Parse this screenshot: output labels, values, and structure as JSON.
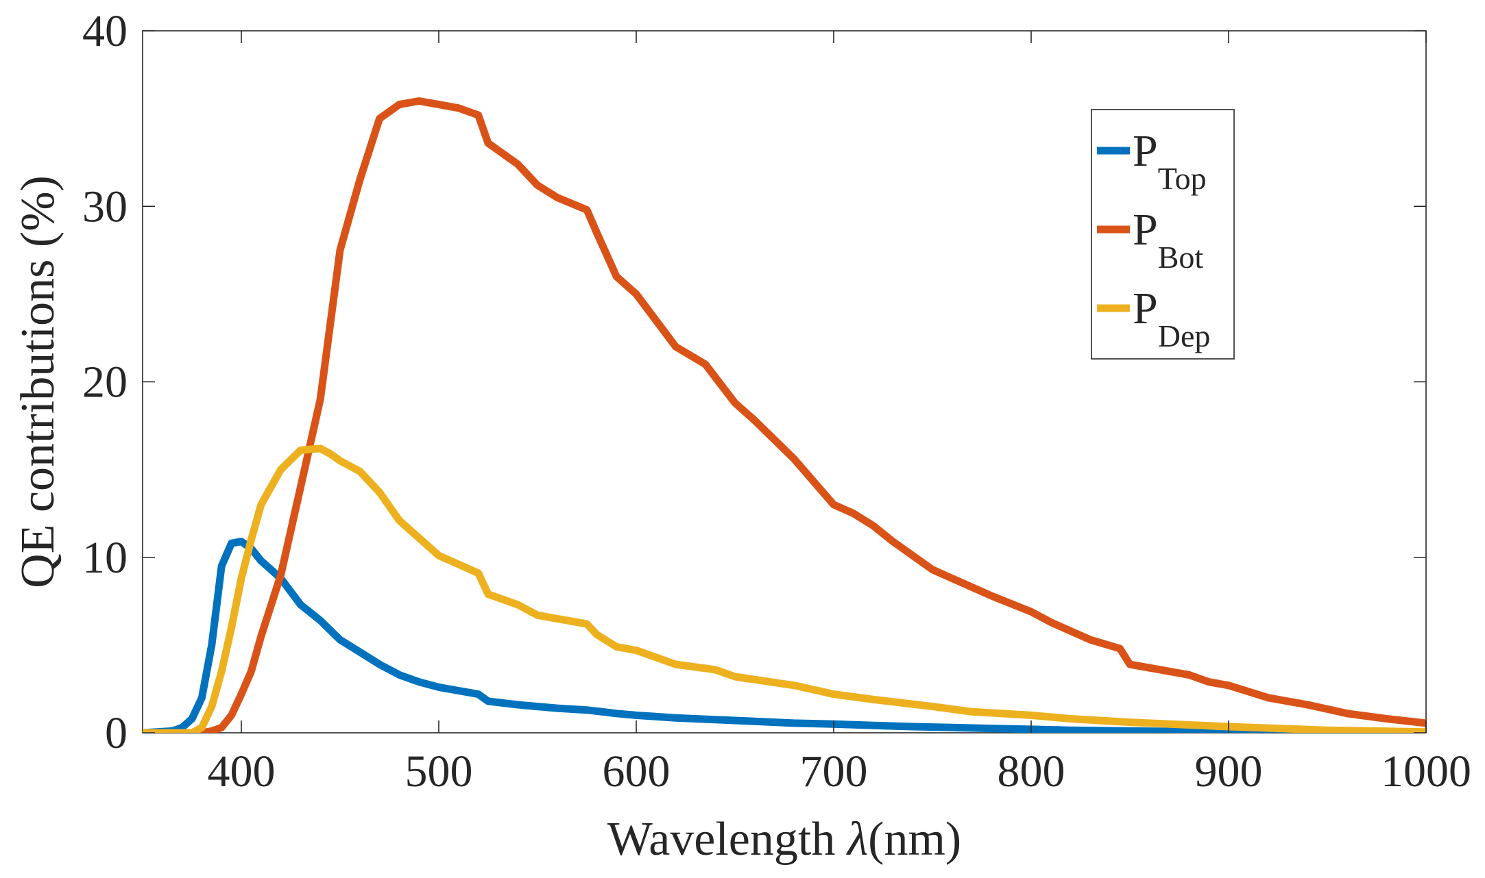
{
  "chart_data": {
    "type": "line",
    "title": "",
    "xlabel_prefix": "Wavelength ",
    "xlabel_symbol": "λ",
    "xlabel_suffix": "(nm)",
    "ylabel": "QE contributions (%)",
    "xlim": [
      350,
      1000
    ],
    "ylim": [
      0,
      40
    ],
    "xticks": [
      400,
      500,
      600,
      700,
      800,
      900,
      1000
    ],
    "yticks": [
      0,
      10,
      20,
      30,
      40
    ],
    "grid": false,
    "legend_position": "top-right",
    "series": [
      {
        "name_main": "P",
        "name_sub": "Top",
        "color": "#0072BD",
        "x": [
          350,
          365,
          370,
          375,
          380,
          385,
          390,
          395,
          400,
          405,
          410,
          420,
          430,
          440,
          450,
          460,
          470,
          480,
          490,
          500,
          510,
          520,
          525,
          540,
          550,
          560,
          575,
          590,
          600,
          620,
          640,
          660,
          680,
          700,
          720,
          740,
          760,
          780,
          800,
          820,
          850,
          880,
          900,
          950,
          1000
        ],
        "y": [
          0,
          0.1,
          0.3,
          0.8,
          2.0,
          5.0,
          9.5,
          10.8,
          10.9,
          10.5,
          9.8,
          8.8,
          7.3,
          6.4,
          5.3,
          4.6,
          3.9,
          3.3,
          2.9,
          2.6,
          2.4,
          2.2,
          1.8,
          1.6,
          1.5,
          1.4,
          1.3,
          1.1,
          1.0,
          0.85,
          0.75,
          0.65,
          0.55,
          0.5,
          0.42,
          0.35,
          0.3,
          0.25,
          0.2,
          0.15,
          0.1,
          0.07,
          0.05,
          0.02,
          0.01
        ]
      },
      {
        "name_main": "P",
        "name_sub": "Bot",
        "color": "#D95319",
        "x": [
          350,
          380,
          385,
          390,
          395,
          400,
          405,
          410,
          420,
          430,
          440,
          450,
          460,
          470,
          480,
          490,
          500,
          510,
          520,
          525,
          540,
          550,
          560,
          575,
          580,
          590,
          600,
          610,
          620,
          635,
          650,
          660,
          680,
          700,
          710,
          720,
          730,
          750,
          770,
          780,
          800,
          810,
          830,
          845,
          850,
          860,
          880,
          890,
          900,
          920,
          940,
          960,
          980,
          1000
        ],
        "y": [
          0,
          0,
          0.1,
          0.3,
          1.0,
          2.2,
          3.5,
          5.5,
          9.0,
          14.0,
          19.0,
          27.5,
          31.5,
          35.0,
          35.8,
          36.0,
          35.8,
          35.6,
          35.2,
          33.6,
          32.4,
          31.2,
          30.5,
          29.8,
          28.5,
          26.0,
          25.0,
          23.5,
          22.0,
          21.0,
          18.8,
          17.8,
          15.6,
          13.0,
          12.5,
          11.8,
          10.9,
          9.3,
          8.3,
          7.8,
          6.9,
          6.3,
          5.3,
          4.8,
          3.9,
          3.7,
          3.3,
          2.9,
          2.7,
          2.0,
          1.6,
          1.1,
          0.8,
          0.55
        ]
      },
      {
        "name_main": "P",
        "name_sub": "Dep",
        "color": "#EDB120",
        "x": [
          350,
          375,
          380,
          385,
          390,
          395,
          400,
          405,
          410,
          420,
          430,
          440,
          445,
          450,
          460,
          470,
          480,
          490,
          500,
          510,
          520,
          525,
          540,
          550,
          560,
          575,
          580,
          590,
          600,
          620,
          640,
          650,
          680,
          700,
          720,
          750,
          770,
          800,
          820,
          850,
          880,
          900,
          950,
          1000
        ],
        "y": [
          0,
          0,
          0.3,
          1.5,
          3.5,
          6.0,
          8.8,
          11.0,
          13.0,
          15.0,
          16.1,
          16.2,
          15.9,
          15.5,
          14.9,
          13.7,
          12.1,
          11.1,
          10.1,
          9.6,
          9.1,
          7.9,
          7.3,
          6.7,
          6.5,
          6.2,
          5.6,
          4.9,
          4.7,
          3.9,
          3.6,
          3.2,
          2.7,
          2.2,
          1.9,
          1.5,
          1.2,
          1.0,
          0.8,
          0.6,
          0.45,
          0.35,
          0.15,
          0.05
        ]
      }
    ]
  }
}
